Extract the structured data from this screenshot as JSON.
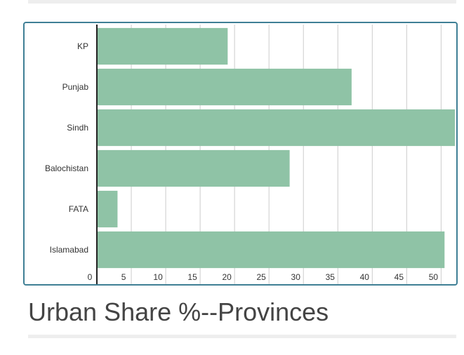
{
  "page": {
    "caption": "Urban Share %--Provinces"
  },
  "colors": {
    "bar": "#8fc3a6",
    "grid": "#cccccc",
    "axis": "#222222",
    "frame": "#3f7f95"
  },
  "chart_data": {
    "type": "bar",
    "orientation": "horizontal",
    "title": "Urban Share %--Provinces",
    "categories": [
      "KP",
      "Punjab",
      "Sindh",
      "Balochistan",
      "FATA",
      "Islamabad"
    ],
    "values": [
      19,
      37,
      52,
      28,
      3,
      50.5
    ],
    "xlim": [
      0,
      52
    ],
    "xticks": [
      0,
      5,
      10,
      15,
      20,
      25,
      30,
      35,
      40,
      45,
      50
    ],
    "grid": true,
    "legend": "none"
  }
}
